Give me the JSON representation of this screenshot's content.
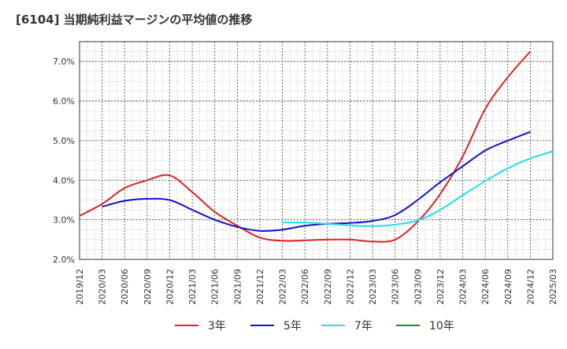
{
  "chart_data": {
    "type": "line",
    "title": "[6104]  当期純利益マージンの平均値の推移",
    "xlabel": "",
    "ylabel": "",
    "ylim": [
      2.0,
      7.5
    ],
    "x_ticks": [
      "2019/12",
      "2020/03",
      "2020/06",
      "2020/09",
      "2020/12",
      "2021/03",
      "2021/06",
      "2021/09",
      "2021/12",
      "2022/03",
      "2022/06",
      "2022/09",
      "2022/12",
      "2023/03",
      "2023/06",
      "2023/09",
      "2023/12",
      "2024/03",
      "2024/06",
      "2024/09",
      "2024/12",
      "2025/03"
    ],
    "y_ticks": [
      {
        "value": 2.0,
        "label": "2.0%"
      },
      {
        "value": 3.0,
        "label": "3.0%"
      },
      {
        "value": 4.0,
        "label": "4.0%"
      },
      {
        "value": 5.0,
        "label": "5.0%"
      },
      {
        "value": 6.0,
        "label": "6.0%"
      },
      {
        "value": 7.0,
        "label": "7.0%"
      }
    ],
    "grid": true,
    "legend_position": "bottom",
    "series": [
      {
        "name": "3年",
        "color": "#dd2222",
        "start_index": 0,
        "values": [
          3.1,
          3.4,
          3.8,
          4.0,
          4.12,
          3.7,
          3.2,
          2.85,
          2.55,
          2.47,
          2.48,
          2.5,
          2.5,
          2.45,
          2.5,
          2.95,
          3.65,
          4.6,
          5.8,
          6.6,
          7.25
        ]
      },
      {
        "name": "5年",
        "color": "#1111cc",
        "start_index": 1,
        "values": [
          3.33,
          3.48,
          3.53,
          3.5,
          3.25,
          3.0,
          2.82,
          2.72,
          2.75,
          2.85,
          2.9,
          2.92,
          2.97,
          3.12,
          3.5,
          3.95,
          4.35,
          4.75,
          5.0,
          5.22
        ]
      },
      {
        "name": "7年",
        "color": "#22ddee",
        "start_index": 9,
        "values": [
          2.93,
          2.93,
          2.9,
          2.86,
          2.84,
          2.88,
          2.98,
          3.25,
          3.62,
          3.98,
          4.3,
          4.55,
          4.73
        ]
      },
      {
        "name": "10年",
        "color": "#228822",
        "start_index": 0,
        "values": []
      }
    ]
  }
}
